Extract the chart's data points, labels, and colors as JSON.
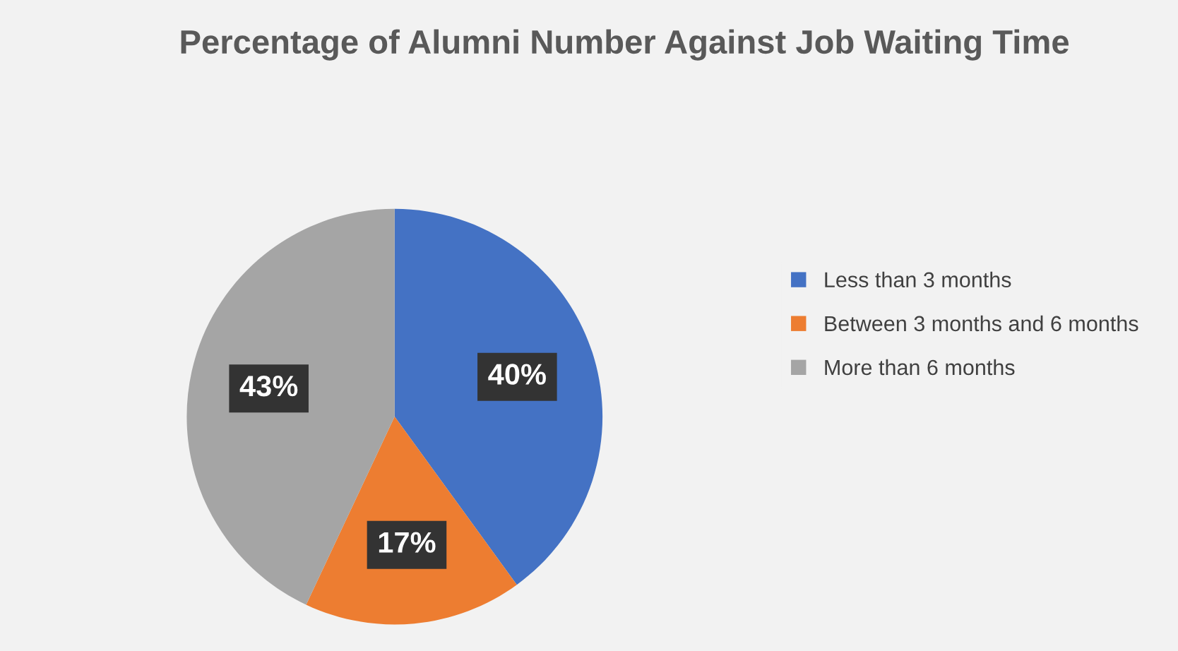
{
  "chart_data": {
    "type": "pie",
    "title": "Percentage of Alumni Number Against Job Waiting Time",
    "categories": [
      "Less than 3 months",
      "Between 3 months and 6 months",
      "More than 6 months"
    ],
    "values": [
      40,
      17,
      43
    ],
    "colors": [
      "#4472c4",
      "#ed7d31",
      "#a5a5a5"
    ],
    "value_labels": [
      "40%",
      "17%",
      "43%"
    ],
    "legend": "right"
  }
}
